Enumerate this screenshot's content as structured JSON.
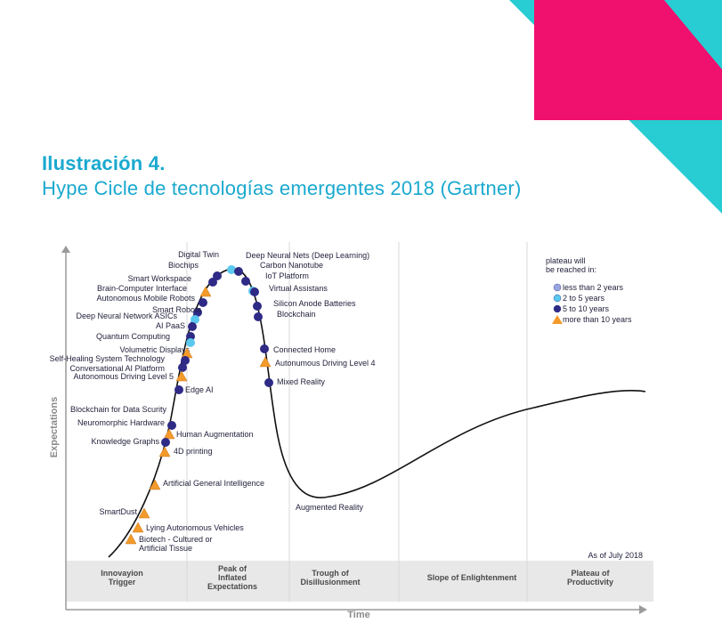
{
  "heading": {
    "number": "Ilustración 4.",
    "title": "Hype Cicle de tecnologías emergentes 2018 (Gartner)"
  },
  "colors": {
    "heading": "#1aa9cf",
    "accent_cyan": "#27cdd3",
    "accent_pink": "#f0106e",
    "dark_dot": "#2e2a86",
    "light_dot": "#5bc8ee",
    "triangle": "#f39a2a",
    "curve": "#111111",
    "phase_band": "#e8e8e8"
  },
  "axes": {
    "y_label": "Expectations",
    "x_label": "Time"
  },
  "as_of": "As of July 2018",
  "phases": [
    {
      "id": "innovation",
      "label": [
        "Innovayion",
        "Trigger"
      ]
    },
    {
      "id": "peak",
      "label": [
        "Peak of",
        "Inflated",
        "Expectations"
      ]
    },
    {
      "id": "trough",
      "label": [
        "Trough of",
        "Disillusionment"
      ]
    },
    {
      "id": "slope",
      "label": [
        "Slope of Enlightenment"
      ]
    },
    {
      "id": "plateau",
      "label": [
        "Plateau of",
        "Productivity"
      ]
    }
  ],
  "legend": {
    "title": [
      "plateau will",
      "be reached in:"
    ],
    "items": [
      {
        "label": "less than 2 years",
        "marker": "circle",
        "color": "#9aa6e0"
      },
      {
        "label": "2 to 5 years",
        "marker": "circle",
        "color": "#5bc8ee"
      },
      {
        "label": "5 to 10 years",
        "marker": "circle",
        "color": "#2e2a86"
      },
      {
        "label": "more than 10 years",
        "marker": "triangle",
        "color": "#f39a2a"
      }
    ]
  },
  "technologies": [
    {
      "name": "Digital Twin",
      "marker": "light",
      "phase": "peak"
    },
    {
      "name": "Biochips",
      "marker": "dark",
      "phase": "peak"
    },
    {
      "name": "Smart Workspace",
      "marker": "dark",
      "phase": "innovation"
    },
    {
      "name": "Brain-Computer Interface",
      "marker": "triangle",
      "phase": "innovation"
    },
    {
      "name": "Autonomous Mobile Robots",
      "marker": "dark",
      "phase": "innovation"
    },
    {
      "name": "Smart Robots",
      "marker": "dark",
      "phase": "innovation"
    },
    {
      "name": "Deep Neural Network ASICs",
      "marker": "light",
      "phase": "innovation"
    },
    {
      "name": "AI PaaS",
      "marker": "dark",
      "phase": "innovation"
    },
    {
      "name": "Quantum Computing",
      "marker": "dark",
      "phase": "innovation"
    },
    {
      "name": "Volumetric Displays",
      "marker": "light",
      "phase": "innovation"
    },
    {
      "name": "Self-Healing System Technology",
      "marker": "triangle",
      "phase": "innovation"
    },
    {
      "name": "Conversational AI Platform",
      "marker": "dark",
      "phase": "innovation"
    },
    {
      "name": "Autonomous Driving Level 5",
      "marker": "dark",
      "phase": "innovation"
    },
    {
      "name": "Edge AI",
      "marker": "triangle",
      "phase": "innovation"
    },
    {
      "name": "Blockchain for Data Scurity",
      "marker": "dark",
      "phase": "innovation"
    },
    {
      "name": "Neuromorphic Hardware",
      "marker": "dark",
      "phase": "innovation"
    },
    {
      "name": "Human Augmentation",
      "marker": "triangle",
      "phase": "innovation"
    },
    {
      "name": "Knowledge Graphs",
      "marker": "dark",
      "phase": "innovation"
    },
    {
      "name": "4D printing",
      "marker": "triangle",
      "phase": "innovation"
    },
    {
      "name": "Artificial General Intelligence",
      "marker": "triangle",
      "phase": "innovation"
    },
    {
      "name": "SmartDust",
      "marker": "triangle",
      "phase": "innovation"
    },
    {
      "name": "Lying Autonomous Vehicles",
      "marker": "triangle",
      "phase": "innovation"
    },
    {
      "name": "Biotech - Cultured or\nArtificial Tissue",
      "marker": "triangle",
      "phase": "innovation"
    },
    {
      "name": "Deep Neural Nets (Deep Learning)",
      "marker": "dark",
      "phase": "peak"
    },
    {
      "name": "Carbon Nanotube",
      "marker": "dark",
      "phase": "peak"
    },
    {
      "name": "IoT Platform",
      "marker": "light",
      "phase": "peak"
    },
    {
      "name": "Virtual Assistans",
      "marker": "dark",
      "phase": "peak"
    },
    {
      "name": "Silicon Anode Batteries",
      "marker": "dark",
      "phase": "peak"
    },
    {
      "name": "Blockchain",
      "marker": "dark",
      "phase": "peak"
    },
    {
      "name": "Connected Home",
      "marker": "dark",
      "phase": "peak"
    },
    {
      "name": "Autonumous Driving Level 4",
      "marker": "triangle",
      "phase": "peak"
    },
    {
      "name": "Mixed Reality",
      "marker": "dark",
      "phase": "peak"
    },
    {
      "name": "Augmented Reality",
      "marker": "none",
      "phase": "trough"
    }
  ]
}
